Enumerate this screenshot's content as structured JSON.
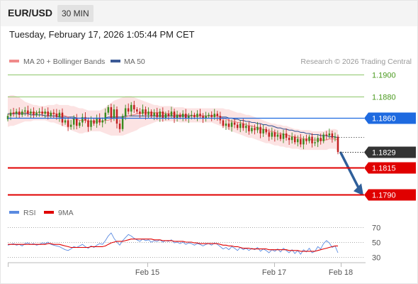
{
  "header": {
    "symbol": "EUR/USD",
    "timeframe": "30 MIN"
  },
  "timestamp": "Tuesday, February 17, 2026 1:05:44 PM CET",
  "credit": "Research © 2026 Trading Central",
  "colors": {
    "ma20": "#f08a8a",
    "ma50": "#3c5a96",
    "resistance": "#8cc66a",
    "pivot": "#1e6ae0",
    "support": "#e00000",
    "current": "#333333",
    "rsi": "#5a8ae0",
    "rsi_ma": "#e00000",
    "arrow": "#2f5f9a"
  },
  "chart_data": [
    {
      "type": "candlestick",
      "legend": [
        {
          "name": "MA 20 + Bollinger Bands",
          "color": "#f08a8a"
        },
        {
          "name": "MA 50",
          "color": "#3c5a96"
        }
      ],
      "ylim": [
        1.1785,
        1.1905
      ],
      "x_ticks": [
        "Feb 15",
        "Feb 17",
        "Feb 18"
      ],
      "levels": [
        {
          "value": 1.19,
          "label": "1.1900",
          "kind": "resistance"
        },
        {
          "value": 1.188,
          "label": "1.1880",
          "kind": "resistance"
        },
        {
          "value": 1.186,
          "label": "1.1860",
          "kind": "pivot"
        },
        {
          "value": 1.1829,
          "label": "1.1829",
          "kind": "current"
        },
        {
          "value": 1.1815,
          "label": "1.1815",
          "kind": "support"
        },
        {
          "value": 1.179,
          "label": "1.1790",
          "kind": "support"
        }
      ],
      "close": [
        1.1862,
        1.1865,
        1.1864,
        1.1866,
        1.1863,
        1.1866,
        1.1867,
        1.1864,
        1.1866,
        1.1863,
        1.1865,
        1.1866,
        1.1864,
        1.1866,
        1.1862,
        1.1865,
        1.1864,
        1.1861,
        1.1865,
        1.1856,
        1.1858,
        1.1852,
        1.1854,
        1.186,
        1.1853,
        1.1856,
        1.1861,
        1.1858,
        1.1852,
        1.1858,
        1.1855,
        1.186,
        1.1856,
        1.1858,
        1.1865,
        1.187,
        1.186,
        1.1868,
        1.1855,
        1.185,
        1.1862,
        1.1869,
        1.1866,
        1.1872,
        1.1868,
        1.1866,
        1.1864,
        1.1868,
        1.1863,
        1.1866,
        1.1862,
        1.1865,
        1.1861,
        1.1866,
        1.186,
        1.1864,
        1.1862,
        1.1866,
        1.186,
        1.1863,
        1.1861,
        1.1864,
        1.186,
        1.1862,
        1.1863,
        1.1861,
        1.1864,
        1.1862,
        1.186,
        1.1862,
        1.1863,
        1.1861,
        1.1864,
        1.1862,
        1.1858,
        1.1853,
        1.1855,
        1.1852,
        1.1856,
        1.1854,
        1.1851,
        1.1855,
        1.1851,
        1.1853,
        1.1848,
        1.1851,
        1.1849,
        1.1852,
        1.1846,
        1.185,
        1.1847,
        1.1843,
        1.1847,
        1.1843,
        1.1845,
        1.1841,
        1.1846,
        1.1842,
        1.184,
        1.1843,
        1.1838,
        1.1841,
        1.1836,
        1.1841,
        1.1839,
        1.1843,
        1.1837,
        1.1838,
        1.1842,
        1.1839,
        1.1845,
        1.1844,
        1.1846,
        1.1842,
        1.1843,
        1.1829
      ],
      "ma20": [
        1.1863,
        1.1864,
        1.1865,
        1.1865,
        1.1865,
        1.1865,
        1.1865,
        1.1865,
        1.1865,
        1.1865,
        1.1865,
        1.1865,
        1.1865,
        1.1865,
        1.1865,
        1.1864,
        1.1864,
        1.1864,
        1.1863,
        1.1863,
        1.1862,
        1.1861,
        1.186,
        1.1859,
        1.1859,
        1.1858,
        1.1858,
        1.1858,
        1.1857,
        1.1857,
        1.1857,
        1.1857,
        1.1857,
        1.1857,
        1.1858,
        1.1858,
        1.1859,
        1.186,
        1.186,
        1.186,
        1.186,
        1.1861,
        1.1862,
        1.1863,
        1.1863,
        1.1864,
        1.1864,
        1.1865,
        1.1865,
        1.1865,
        1.1865,
        1.1865,
        1.1865,
        1.1865,
        1.1865,
        1.1864,
        1.1864,
        1.1864,
        1.1864,
        1.1863,
        1.1863,
        1.1863,
        1.1863,
        1.1863,
        1.1862,
        1.1862,
        1.1862,
        1.1862,
        1.1862,
        1.1862,
        1.1862,
        1.1862,
        1.1862,
        1.1862,
        1.1861,
        1.186,
        1.1859,
        1.1858,
        1.1857,
        1.1857,
        1.1856,
        1.1856,
        1.1855,
        1.1854,
        1.1853,
        1.1853,
        1.1852,
        1.1851,
        1.185,
        1.185,
        1.1849,
        1.1848,
        1.1848,
        1.1847,
        1.1846,
        1.1846,
        1.1845,
        1.1845,
        1.1844,
        1.1843,
        1.1843,
        1.1842,
        1.1842,
        1.1841,
        1.1841,
        1.1841,
        1.184,
        1.184,
        1.184,
        1.184,
        1.184,
        1.184,
        1.1841,
        1.1841,
        1.1841,
        1.184
      ],
      "bb_upper": [
        1.188,
        1.1881,
        1.1881,
        1.188,
        1.1879,
        1.1877,
        1.1875,
        1.1874,
        1.1873,
        1.1872,
        1.1872,
        1.1871,
        1.1871,
        1.1871,
        1.1872,
        1.1872,
        1.1872,
        1.1873,
        1.1872,
        1.1872,
        1.1872,
        1.1872,
        1.1871,
        1.1871,
        1.187,
        1.1869,
        1.1869,
        1.1868,
        1.1867,
        1.1867,
        1.1867,
        1.1867,
        1.1867,
        1.1868,
        1.187,
        1.1872,
        1.1874,
        1.1876,
        1.1877,
        1.1878,
        1.1879,
        1.188,
        1.188,
        1.188,
        1.1879,
        1.1878,
        1.1877,
        1.1876,
        1.1875,
        1.1874,
        1.1873,
        1.1872,
        1.1872,
        1.1871,
        1.1871,
        1.1871,
        1.1871,
        1.1871,
        1.187,
        1.187,
        1.187,
        1.187,
        1.1869,
        1.1869,
        1.1869,
        1.1869,
        1.1869,
        1.1869,
        1.1869,
        1.1869,
        1.1869,
        1.1869,
        1.1869,
        1.1869,
        1.1869,
        1.1869,
        1.1868,
        1.1868,
        1.1867,
        1.1866,
        1.1865,
        1.1865,
        1.1864,
        1.1863,
        1.1863,
        1.1862,
        1.1861,
        1.186,
        1.1859,
        1.1858,
        1.1857,
        1.1856,
        1.1855,
        1.1855,
        1.1854,
        1.1854,
        1.1853,
        1.1853,
        1.1852,
        1.1851,
        1.185,
        1.185,
        1.1849,
        1.1849,
        1.1849,
        1.1849,
        1.1848,
        1.1848,
        1.1848,
        1.1848,
        1.1848,
        1.1849,
        1.1849,
        1.185,
        1.185,
        1.1849
      ],
      "bb_lower": [
        1.1852,
        1.1853,
        1.1853,
        1.1854,
        1.1855,
        1.1856,
        1.1857,
        1.1857,
        1.1857,
        1.1858,
        1.1858,
        1.1858,
        1.1858,
        1.1858,
        1.1857,
        1.1856,
        1.1856,
        1.1855,
        1.1854,
        1.1853,
        1.1852,
        1.1851,
        1.1849,
        1.1848,
        1.1847,
        1.1846,
        1.1846,
        1.1847,
        1.1847,
        1.1848,
        1.1848,
        1.1848,
        1.1848,
        1.1847,
        1.1846,
        1.1845,
        1.1844,
        1.1844,
        1.1844,
        1.1844,
        1.1844,
        1.1845,
        1.1846,
        1.1847,
        1.1848,
        1.1849,
        1.1851,
        1.1852,
        1.1853,
        1.1854,
        1.1855,
        1.1856,
        1.1857,
        1.1857,
        1.1857,
        1.1857,
        1.1857,
        1.1857,
        1.1857,
        1.1857,
        1.1856,
        1.1856,
        1.1856,
        1.1856,
        1.1856,
        1.1856,
        1.1856,
        1.1856,
        1.1856,
        1.1856,
        1.1856,
        1.1856,
        1.1855,
        1.1854,
        1.1853,
        1.1852,
        1.1851,
        1.1849,
        1.1848,
        1.1847,
        1.1846,
        1.1845,
        1.1844,
        1.1843,
        1.1842,
        1.1842,
        1.1841,
        1.184,
        1.1839,
        1.1838,
        1.1837,
        1.1837,
        1.1836,
        1.1835,
        1.1835,
        1.1834,
        1.1834,
        1.1833,
        1.1833,
        1.1832,
        1.1832,
        1.1832,
        1.1831,
        1.1831,
        1.1831,
        1.1831,
        1.1831,
        1.1831,
        1.1831,
        1.1831,
        1.1831,
        1.1831,
        1.1832,
        1.1832,
        1.1832,
        1.183
      ],
      "ma50": [
        1.1864,
        1.1864,
        1.1864,
        1.1864,
        1.1864,
        1.1864,
        1.1864,
        1.1864,
        1.1863,
        1.1863,
        1.1863,
        1.1863,
        1.1863,
        1.1862,
        1.1862,
        1.1862,
        1.1862,
        1.1862,
        1.1861,
        1.1861,
        1.1861,
        1.1861,
        1.1861,
        1.1861,
        1.186,
        1.186,
        1.186,
        1.186,
        1.186,
        1.186,
        1.186,
        1.186,
        1.186,
        1.186,
        1.186,
        1.1861,
        1.1861,
        1.1861,
        1.1861,
        1.1861,
        1.1861,
        1.1862,
        1.1862,
        1.1862,
        1.1862,
        1.1862,
        1.1862,
        1.1862,
        1.1862,
        1.1862,
        1.1862,
        1.1862,
        1.1862,
        1.1862,
        1.1862,
        1.1862,
        1.1862,
        1.1862,
        1.1862,
        1.1862,
        1.1862,
        1.1862,
        1.1862,
        1.1862,
        1.1862,
        1.1862,
        1.1862,
        1.1862,
        1.1862,
        1.1862,
        1.1862,
        1.1862,
        1.1862,
        1.1862,
        1.1861,
        1.1861,
        1.1861,
        1.186,
        1.186,
        1.1859,
        1.1859,
        1.1858,
        1.1858,
        1.1857,
        1.1857,
        1.1856,
        1.1856,
        1.1855,
        1.1855,
        1.1854,
        1.1854,
        1.1853,
        1.1853,
        1.1852,
        1.1851,
        1.1851,
        1.185,
        1.185,
        1.1849,
        1.1849,
        1.1848,
        1.1848,
        1.1847,
        1.1847,
        1.1846,
        1.1846,
        1.1845,
        1.1845,
        1.1845,
        1.1844,
        1.1844,
        1.1844,
        1.1843,
        1.1843,
        1.1843,
        1.1842
      ],
      "forecast_arrow": {
        "from": 1.1829,
        "to": 1.179
      }
    },
    {
      "type": "line",
      "legend": [
        {
          "name": "RSI",
          "color": "#5a8ae0"
        },
        {
          "name": "9MA",
          "color": "#e00000"
        }
      ],
      "ylim": [
        22,
        78
      ],
      "y_ticks": [
        70,
        50,
        30
      ],
      "rsi": [
        46,
        47,
        48,
        46,
        47,
        45,
        48,
        49,
        47,
        48,
        46,
        47,
        49,
        48,
        50,
        47,
        46,
        45,
        44,
        42,
        40,
        39,
        41,
        44,
        43,
        45,
        47,
        44,
        42,
        45,
        43,
        46,
        48,
        47,
        52,
        58,
        62,
        55,
        50,
        46,
        52,
        56,
        60,
        58,
        55,
        53,
        51,
        54,
        52,
        53,
        50,
        52,
        51,
        53,
        50,
        52,
        51,
        53,
        49,
        50,
        48,
        50,
        47,
        49,
        48,
        46,
        48,
        47,
        45,
        47,
        48,
        46,
        49,
        47,
        44,
        41,
        43,
        40,
        44,
        42,
        39,
        43,
        40,
        42,
        39,
        42,
        40,
        43,
        38,
        41,
        39,
        36,
        40,
        38,
        41,
        37,
        42,
        39,
        36,
        40,
        35,
        39,
        34,
        40,
        37,
        42,
        36,
        38,
        44,
        41,
        48,
        52,
        49,
        43,
        45,
        36
      ],
      "rsi_ma": [
        47,
        47,
        47,
        47,
        47,
        47,
        47,
        47,
        47,
        47,
        47,
        47,
        47,
        47,
        48,
        48,
        47,
        47,
        47,
        46,
        45,
        44,
        43,
        43,
        43,
        43,
        43,
        43,
        43,
        44,
        44,
        44,
        44,
        44,
        45,
        47,
        49,
        50,
        51,
        51,
        51,
        52,
        53,
        54,
        54,
        54,
        54,
        54,
        54,
        54,
        54,
        53,
        53,
        53,
        52,
        52,
        52,
        52,
        51,
        51,
        51,
        51,
        50,
        50,
        50,
        49,
        49,
        48,
        48,
        48,
        48,
        48,
        48,
        48,
        47,
        46,
        46,
        45,
        45,
        44,
        44,
        43,
        42,
        42,
        42,
        41,
        41,
        41,
        41,
        41,
        41,
        40,
        40,
        40,
        40,
        40,
        40,
        40,
        39,
        39,
        39,
        39,
        38,
        38,
        38,
        38,
        38,
        38,
        39,
        40,
        41,
        42,
        43,
        44,
        45,
        45
      ]
    }
  ]
}
